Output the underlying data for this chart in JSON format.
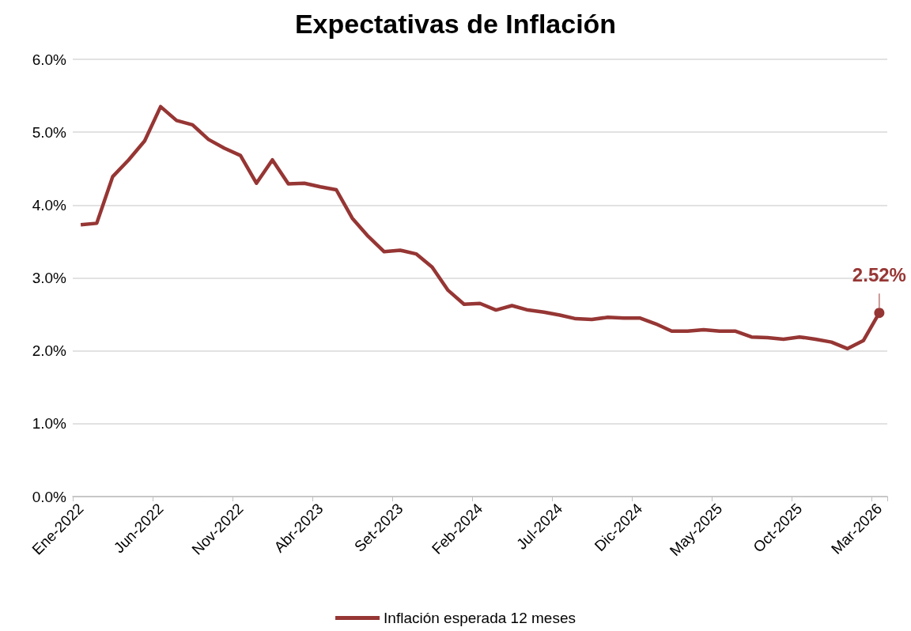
{
  "chart_data": {
    "type": "line",
    "title": "Expectativas de Inflación",
    "categories": [
      "Ene-2022",
      null,
      null,
      null,
      null,
      "Jun-2022",
      null,
      null,
      null,
      null,
      "Nov-2022",
      null,
      null,
      null,
      null,
      "Abr-2023",
      null,
      null,
      null,
      null,
      "Set-2023",
      null,
      null,
      null,
      null,
      "Feb-2024",
      null,
      null,
      null,
      null,
      "Jul-2024",
      null,
      null,
      null,
      null,
      "Dic-2024",
      null,
      null,
      null,
      null,
      "May-2025",
      null,
      null,
      null,
      null,
      "Oct-2025",
      null,
      null,
      null,
      null,
      "Mar-2026"
    ],
    "series": [
      {
        "name": "Inflación esperada 12 meses",
        "color": "#963634",
        "values": [
          3.73,
          3.75,
          4.39,
          4.62,
          4.88,
          5.35,
          5.16,
          5.1,
          4.9,
          4.78,
          4.68,
          4.3,
          4.62,
          4.29,
          4.3,
          4.25,
          4.21,
          3.82,
          3.57,
          3.36,
          3.38,
          3.33,
          3.15,
          2.83,
          2.64,
          2.65,
          2.56,
          2.62,
          2.56,
          2.53,
          2.49,
          2.44,
          2.43,
          2.46,
          2.45,
          2.45,
          2.37,
          2.27,
          2.27,
          2.29,
          2.27,
          2.27,
          2.19,
          2.18,
          2.16,
          2.19,
          2.16,
          2.12,
          2.03,
          2.14,
          2.52
        ],
        "value_labels": [
          null,
          null,
          null,
          null,
          null,
          null,
          null,
          null,
          null,
          null,
          null,
          null,
          null,
          null,
          null,
          null,
          null,
          null,
          null,
          null,
          null,
          null,
          null,
          null,
          null,
          null,
          null,
          null,
          null,
          null,
          null,
          null,
          null,
          null,
          null,
          null,
          null,
          null,
          null,
          null,
          null,
          null,
          null,
          null,
          null,
          null,
          null,
          null,
          null,
          null,
          "2.52%"
        ]
      }
    ],
    "ylim": [
      0,
      6
    ],
    "yticks": [
      {
        "value": 0,
        "label": "0.0%"
      },
      {
        "value": 1,
        "label": "1.0%"
      },
      {
        "value": 2,
        "label": "2.0%"
      },
      {
        "value": 3,
        "label": "3.0%"
      },
      {
        "value": 4,
        "label": "4.0%"
      },
      {
        "value": 5,
        "label": "5.0%"
      },
      {
        "value": 6,
        "label": "6.0%"
      }
    ],
    "grid": "y",
    "legend": "bottom",
    "marker": "none",
    "line_style": "solid"
  }
}
